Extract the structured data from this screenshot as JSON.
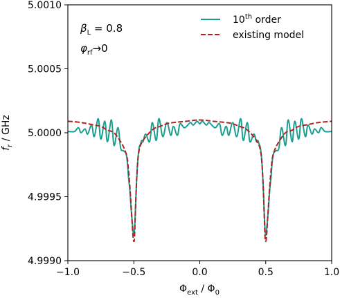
{
  "chart_data": {
    "type": "line",
    "title": "",
    "xlabel": {
      "main": "Φ",
      "main_sub": "ext",
      "sep": " / ",
      "denom": "Φ",
      "denom_sub": "0"
    },
    "ylabel": {
      "main": "f",
      "main_sub": "r",
      "unit": " / GHz"
    },
    "xlim": [
      -1.0,
      1.0
    ],
    "ylim": [
      4.999,
      5.001
    ],
    "x_ticks": [
      -1.0,
      -0.5,
      0.0,
      0.5,
      1.0
    ],
    "x_tick_labels": [
      "−1.0",
      "−0.5",
      "0.0",
      "0.5",
      "1.0"
    ],
    "y_ticks": [
      4.999,
      4.9995,
      5.0,
      5.0005,
      5.001
    ],
    "y_tick_labels": [
      "4.9990",
      "4.9995",
      "5.0000",
      "5.0005",
      "5.0010"
    ],
    "grid": false,
    "legend_position": "top-right",
    "annotations": [
      {
        "symbol": "β",
        "sub": "L",
        "text": " = 0.8"
      },
      {
        "symbol": "φ",
        "sub": "rf",
        "text": "→0"
      }
    ],
    "series": [
      {
        "name": "10th order",
        "name_base": "10",
        "name_sup": "th",
        "name_rest": " order",
        "color": "#1a9e8f",
        "style": "solid",
        "x": [
          -1.0,
          -0.95,
          -0.92,
          -0.9,
          -0.87,
          -0.85,
          -0.82,
          -0.8,
          -0.77,
          -0.75,
          -0.72,
          -0.7,
          -0.67,
          -0.65,
          -0.62,
          -0.6,
          -0.58,
          -0.56,
          -0.55,
          -0.54,
          -0.53,
          -0.52,
          -0.51,
          -0.505,
          -0.5,
          -0.495,
          -0.49,
          -0.48,
          -0.47,
          -0.46,
          -0.45,
          -0.44,
          -0.43,
          -0.41,
          -0.38,
          -0.36,
          -0.33,
          -0.31,
          -0.28,
          -0.25,
          -0.22,
          -0.2,
          -0.17,
          -0.15,
          -0.12,
          -0.1,
          -0.07,
          -0.05,
          -0.02,
          0.0,
          0.02,
          0.05,
          0.07,
          0.1,
          0.12,
          0.15,
          0.17,
          0.2,
          0.22,
          0.25,
          0.28,
          0.31,
          0.33,
          0.36,
          0.38,
          0.41,
          0.43,
          0.44,
          0.45,
          0.46,
          0.47,
          0.48,
          0.49,
          0.495,
          0.5,
          0.505,
          0.51,
          0.52,
          0.53,
          0.54,
          0.55,
          0.56,
          0.58,
          0.6,
          0.62,
          0.65,
          0.67,
          0.7,
          0.72,
          0.75,
          0.77,
          0.8,
          0.82,
          0.85,
          0.87,
          0.9,
          0.92,
          0.95,
          1.0
        ],
        "y": [
          5.00001,
          5.00001,
          5.00004,
          5.0,
          5.00003,
          4.99999,
          5.00006,
          4.99997,
          5.00011,
          4.99995,
          5.00009,
          4.99993,
          5.0001,
          4.9999,
          5.00004,
          4.99988,
          4.99986,
          4.99984,
          4.99978,
          4.99965,
          4.99955,
          4.9994,
          4.99928,
          4.99922,
          4.9992,
          4.99924,
          4.99934,
          4.9996,
          4.99978,
          4.99988,
          4.99991,
          4.99994,
          4.99993,
          4.99999,
          4.99993,
          5.00008,
          4.99994,
          5.00011,
          4.99997,
          5.00008,
          4.99998,
          5.00005,
          4.99998,
          5.00007,
          5.00004,
          5.00005,
          5.00008,
          5.00006,
          5.00009,
          5.00007,
          5.00009,
          5.00006,
          5.00008,
          5.00005,
          5.00004,
          5.00007,
          4.99998,
          5.00005,
          4.99998,
          5.00008,
          4.99997,
          5.00011,
          4.99994,
          5.00008,
          4.99993,
          4.99999,
          4.99993,
          4.99994,
          4.99991,
          4.99988,
          4.99978,
          4.9996,
          4.99934,
          4.99924,
          4.9992,
          4.99922,
          4.99928,
          4.9994,
          4.99955,
          4.99965,
          4.99978,
          4.99984,
          4.99986,
          4.99988,
          5.00004,
          4.9999,
          5.0001,
          4.99993,
          5.00009,
          4.99995,
          5.00011,
          4.99997,
          5.00006,
          4.99999,
          5.00003,
          5.0,
          5.00004,
          5.00001,
          5.00001
        ]
      },
      {
        "name": "existing model",
        "color": "#b22222",
        "style": "dashed",
        "x": [
          -1.0,
          -0.9,
          -0.8,
          -0.75,
          -0.7,
          -0.65,
          -0.6,
          -0.57,
          -0.55,
          -0.54,
          -0.53,
          -0.52,
          -0.51,
          -0.505,
          -0.5,
          -0.495,
          -0.49,
          -0.48,
          -0.47,
          -0.46,
          -0.45,
          -0.43,
          -0.4,
          -0.35,
          -0.3,
          -0.25,
          -0.2,
          -0.1,
          0.0,
          0.1,
          0.2,
          0.25,
          0.3,
          0.35,
          0.4,
          0.43,
          0.45,
          0.46,
          0.47,
          0.48,
          0.49,
          0.495,
          0.5,
          0.505,
          0.51,
          0.52,
          0.53,
          0.54,
          0.55,
          0.57,
          0.6,
          0.65,
          0.7,
          0.75,
          0.8,
          0.9,
          1.0
        ],
        "y": [
          5.00009,
          5.00008,
          5.00006,
          5.00005,
          5.00002,
          5.0,
          4.99993,
          4.99987,
          4.9998,
          4.9997,
          4.99958,
          4.99942,
          4.99925,
          4.99918,
          4.99915,
          4.99918,
          4.99932,
          4.9996,
          4.99978,
          4.99986,
          4.9999,
          4.99994,
          4.99998,
          5.00003,
          5.00005,
          5.00007,
          5.00008,
          5.00009,
          5.0001,
          5.00009,
          5.00008,
          5.00007,
          5.00005,
          5.00003,
          4.99998,
          4.99994,
          4.9999,
          4.99986,
          4.99978,
          4.9996,
          4.99932,
          4.99918,
          4.99915,
          4.99918,
          4.99925,
          4.99942,
          4.99958,
          4.9997,
          4.9998,
          4.99987,
          4.99993,
          5.0,
          5.00002,
          5.00005,
          5.00006,
          5.00008,
          5.00009
        ]
      }
    ]
  }
}
